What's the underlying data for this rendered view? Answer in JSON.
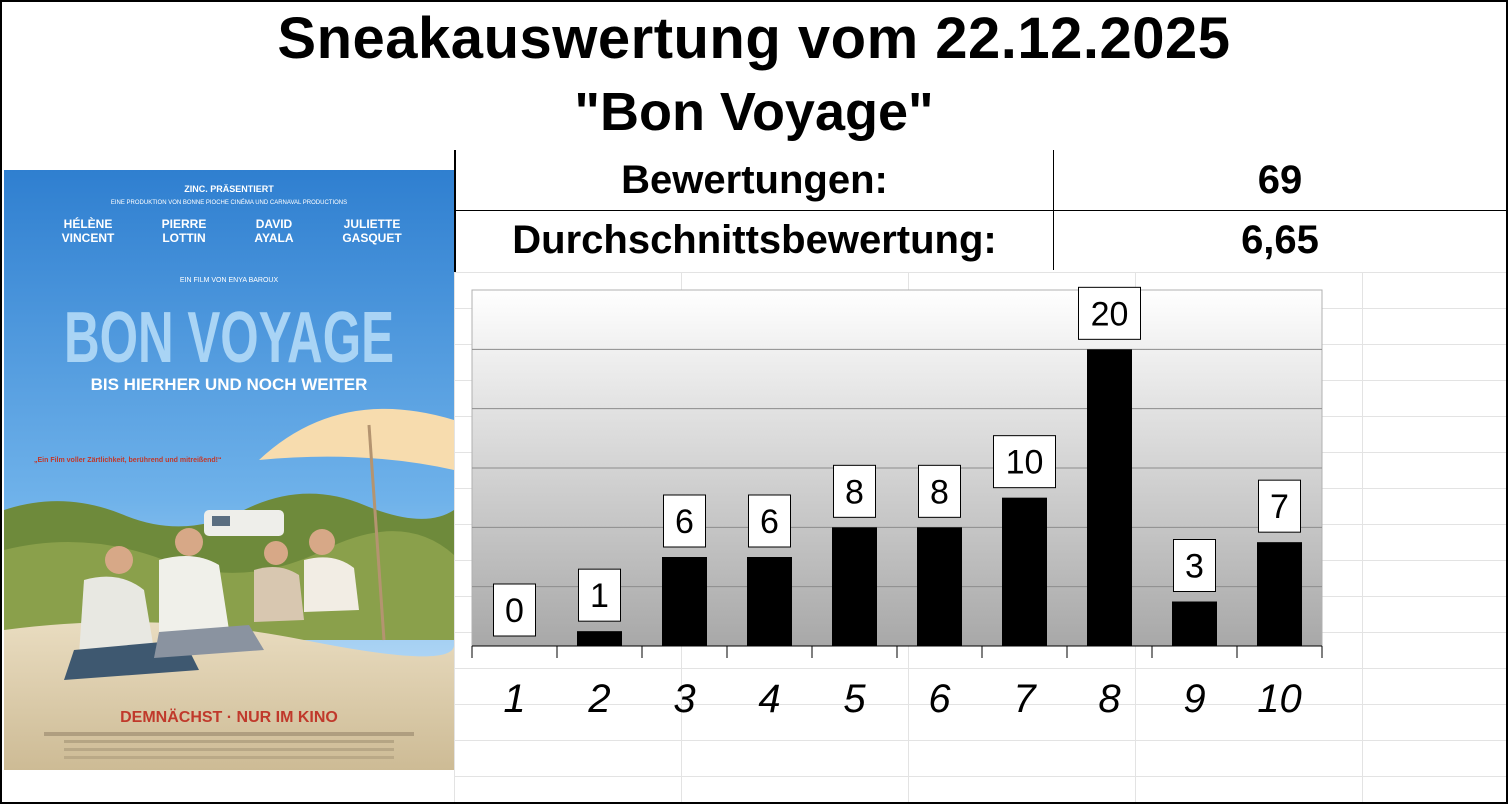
{
  "header": {
    "title": "Sneakauswertung vom 22.12.2025",
    "movie": "\"Bon Voyage\""
  },
  "stats": {
    "ratings_label": "Bewertungen:",
    "ratings_value": "69",
    "average_label": "Durchschnittsbewertung:",
    "average_value": "6,65"
  },
  "poster": {
    "presenter": "ZINC. PRÄSENTIERT",
    "production": "EINE PRODUKTION VON BONNE PIOCHE CINÉMA UND CARNAVAL PRODUCTIONS",
    "cast": [
      "HÉLÈNE\nVINCENT",
      "PIERRE\nLOTTIN",
      "DAVID\nAYALA",
      "JULIETTE\nGASQUET"
    ],
    "director": "EIN FILM VON ENYA BAROUX",
    "title": "BON VOYAGE",
    "tagline": "BIS HIERHER UND NOCH WEITER",
    "quote": "„Ein Film voller Zärtlichkeit, berührend und mitreißend!“",
    "release": "DEMNÄCHST · NUR IM KINO"
  },
  "chart_data": {
    "type": "bar",
    "categories": [
      "1",
      "2",
      "3",
      "4",
      "5",
      "6",
      "7",
      "8",
      "9",
      "10"
    ],
    "values": [
      0,
      1,
      6,
      6,
      8,
      8,
      10,
      20,
      3,
      7
    ],
    "ylim": [
      0,
      24
    ],
    "grid": true,
    "bar_color": "#000000",
    "data_labels": true
  }
}
